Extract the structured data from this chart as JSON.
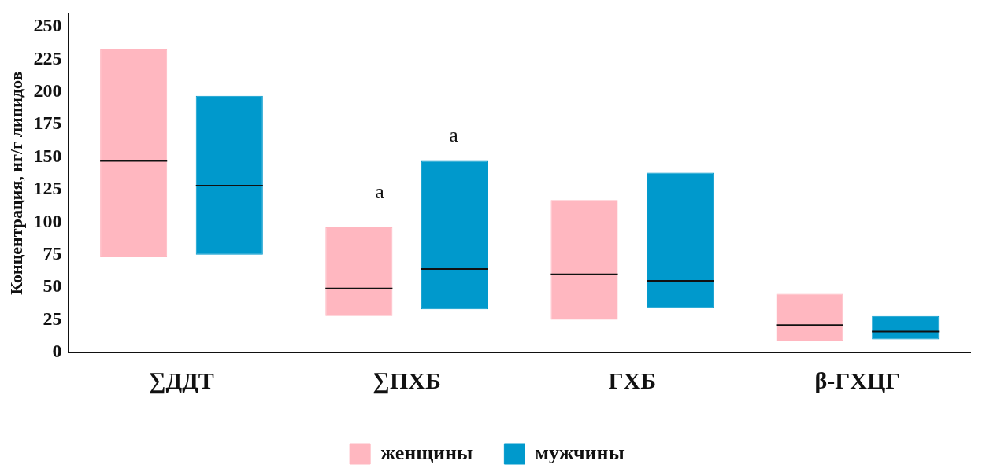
{
  "chart_data": {
    "type": "box",
    "ylabel": "Концентрация, нг/г липидов",
    "categories": [
      "∑ДДТ",
      "∑ПХБ",
      "ГХБ",
      "β-ГХЦГ"
    ],
    "ylim": [
      0,
      260
    ],
    "yticks": [
      0,
      25,
      50,
      75,
      100,
      125,
      150,
      175,
      200,
      225,
      250
    ],
    "grid": false,
    "legend": "bottom",
    "series": [
      {
        "name": "женщины",
        "color": "#ffb7c0",
        "boxes": [
          {
            "low": 73,
            "q1": 73,
            "median": 147,
            "q3": 233,
            "high": 233
          },
          {
            "low": 28,
            "q1": 28,
            "median": 49,
            "q3": 96,
            "high": 96
          },
          {
            "low": 25,
            "q1": 25,
            "median": 60,
            "q3": 117,
            "high": 117
          },
          {
            "low": 9,
            "q1": 9,
            "median": 21,
            "q3": 45,
            "high": 45
          }
        ]
      },
      {
        "name": "мужчины",
        "color": "#0099cc",
        "boxes": [
          {
            "low": 75,
            "q1": 75,
            "median": 128,
            "q3": 197,
            "high": 197
          },
          {
            "low": 33,
            "q1": 33,
            "median": 64,
            "q3": 147,
            "high": 147
          },
          {
            "low": 34,
            "q1": 34,
            "median": 55,
            "q3": 138,
            "high": 138
          },
          {
            "low": 10,
            "q1": 10,
            "median": 16,
            "q3": 28,
            "high": 28
          }
        ]
      }
    ],
    "annotations": [
      "a",
      "a"
    ]
  }
}
